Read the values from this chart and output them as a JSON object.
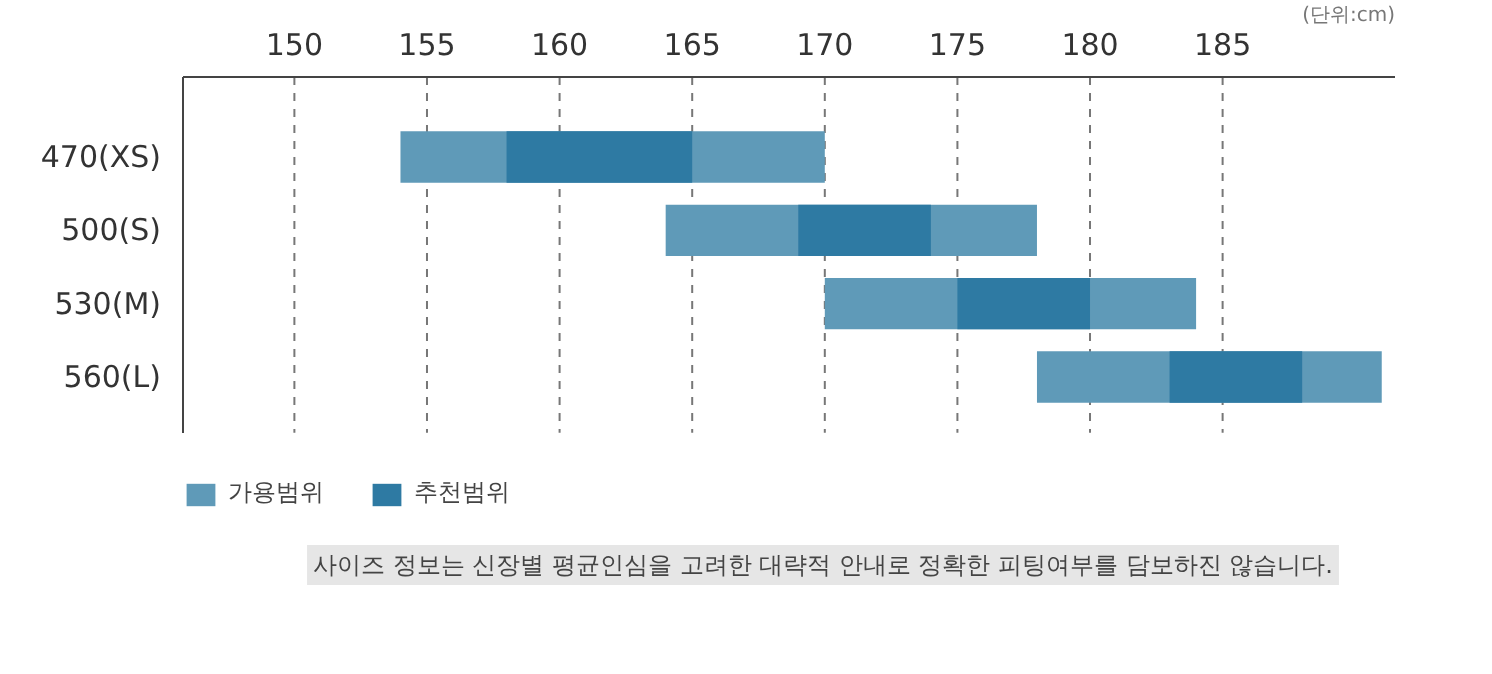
{
  "chart_data": {
    "type": "bar",
    "orientation": "horizontal",
    "xlabel": "(단위:cm)",
    "categories": [
      "470(XS)",
      "500(S)",
      "530(M)",
      "560(L)"
    ],
    "series": [
      {
        "name": "가용범위",
        "color": "#5f9ab8",
        "base": [
          154,
          164,
          170,
          178
        ],
        "values": [
          16,
          14,
          14,
          13
        ]
      },
      {
        "name": "추천범위",
        "color": "#2e7aa3",
        "base": [
          158,
          169,
          175,
          183
        ],
        "values": [
          7,
          5,
          5,
          5
        ]
      }
    ],
    "xlim": [
      145.8,
      191.5
    ],
    "xticks": [
      150,
      155,
      160,
      165,
      170,
      175,
      180,
      185
    ],
    "grid": "x",
    "legend": "bottom left",
    "annotations": [
      "사이즈 정보는 신장별 평균인심을 고려한 대략적 안내로 정확한 피팅여부를 담보하진 않습니다."
    ]
  }
}
